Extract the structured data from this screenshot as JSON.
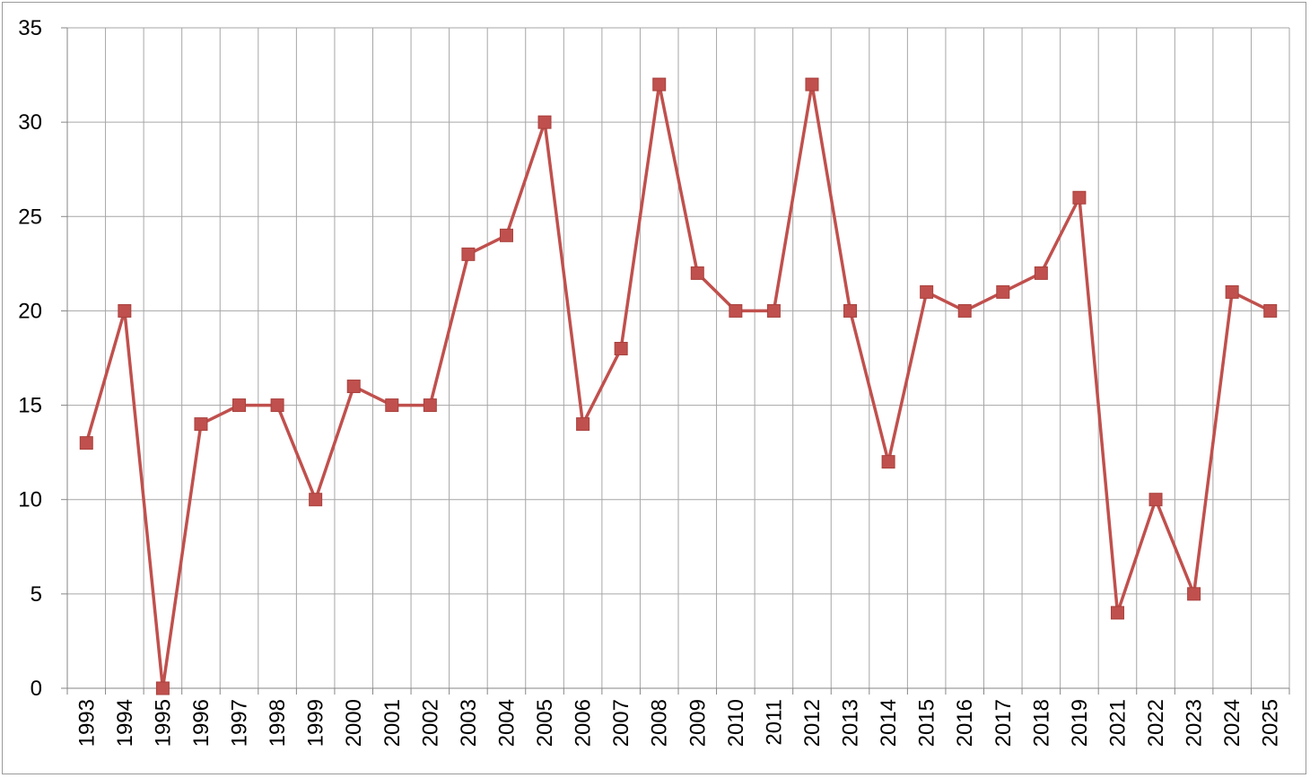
{
  "chart_data": {
    "type": "line",
    "title": "",
    "xlabel": "",
    "ylabel": "",
    "categories": [
      "1993",
      "1994",
      "1995",
      "1996",
      "1997",
      "1998",
      "1999",
      "2000",
      "2001",
      "2002",
      "2003",
      "2004",
      "2005",
      "2006",
      "2007",
      "2008",
      "2009",
      "2010",
      "2011",
      "2012",
      "2013",
      "2014",
      "2015",
      "2016",
      "2017",
      "2018",
      "2019",
      "2021",
      "2022",
      "2023",
      "2024",
      "2025"
    ],
    "series": [
      {
        "values": [
          13,
          20,
          0,
          14,
          15,
          15,
          10,
          16,
          15,
          15,
          23,
          24,
          30,
          14,
          18,
          32,
          22,
          20,
          20,
          32,
          20,
          12,
          21,
          20,
          21,
          22,
          26,
          4,
          10,
          5,
          21,
          20
        ]
      }
    ],
    "ylim": [
      0,
      35
    ],
    "yticks": [
      0,
      5,
      10,
      15,
      20,
      25,
      30,
      35
    ],
    "grid": true,
    "legend": "none",
    "colors": {
      "line": "#c0504d",
      "grid": "#a6a6a6",
      "axis": "#868686"
    }
  }
}
